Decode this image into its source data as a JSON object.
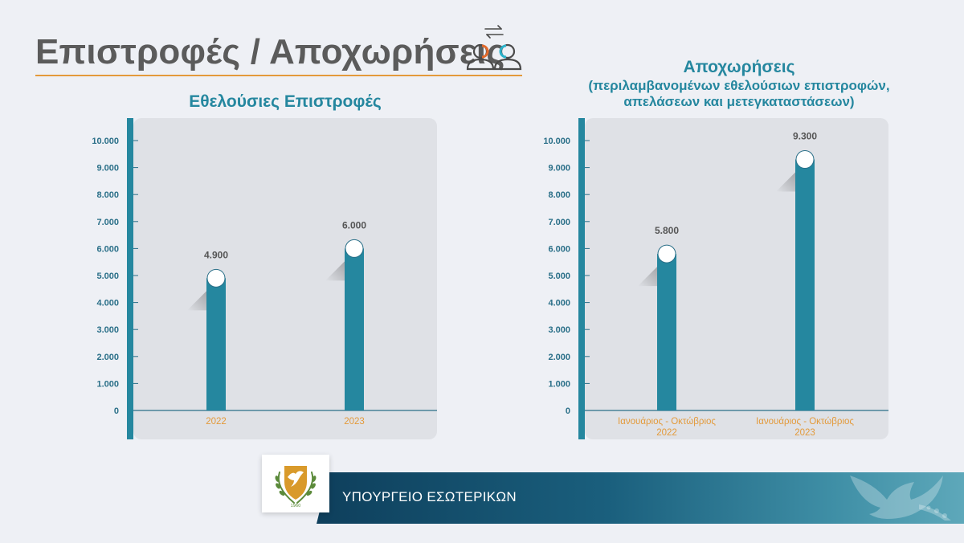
{
  "header": {
    "title": "Επιστροφές / Αποχωρήσεις"
  },
  "footer": {
    "ministry": "ΥΠΟΥΡΓΕΙΟ ΕΣΩΤΕΡΙΚΩΝ"
  },
  "colors": {
    "accent": "#25879f",
    "title_rule": "#e39a3b",
    "label_orange": "#e39a3b",
    "bar": "#25879f"
  },
  "icons": [
    "people-exchange-icon",
    "cyprus-emblem-icon",
    "dove-icon"
  ],
  "chart_data": [
    {
      "type": "bar",
      "title": "Εθελούσιες Επιστροφές",
      "categories": [
        [
          "2022"
        ],
        [
          "2023"
        ]
      ],
      "values": [
        4900,
        6000
      ],
      "value_labels": [
        "4.900",
        "6.000"
      ],
      "ylim": [
        0,
        10000
      ],
      "yticks": [
        0,
        1000,
        2000,
        3000,
        4000,
        5000,
        6000,
        7000,
        8000,
        9000,
        10000
      ],
      "ytick_labels": [
        "0",
        "1.000",
        "2.000",
        "3.000",
        "4.000",
        "5.000",
        "6.000",
        "7.000",
        "8.000",
        "9.000",
        "10.000"
      ],
      "xlabel": "",
      "ylabel": ""
    },
    {
      "type": "bar",
      "title": "Αποχωρήσεις",
      "subtitle": [
        "(περιλαμβανομένων εθελούσιων επιστροφών,",
        "απελάσεων και μετεγκαταστάσεων)"
      ],
      "categories": [
        [
          "Ιανουάριος - Οκτώβριος",
          "2022"
        ],
        [
          "Ιανουάριος - Οκτώβριος",
          "2023"
        ]
      ],
      "values": [
        5800,
        9300
      ],
      "value_labels": [
        "5.800",
        "9.300"
      ],
      "ylim": [
        0,
        10000
      ],
      "yticks": [
        0,
        1000,
        2000,
        3000,
        4000,
        5000,
        6000,
        7000,
        8000,
        9000,
        10000
      ],
      "ytick_labels": [
        "0",
        "1.000",
        "2.000",
        "3.000",
        "4.000",
        "5.000",
        "6.000",
        "7.000",
        "8.000",
        "9.000",
        "10.000"
      ],
      "xlabel": "",
      "ylabel": ""
    }
  ]
}
